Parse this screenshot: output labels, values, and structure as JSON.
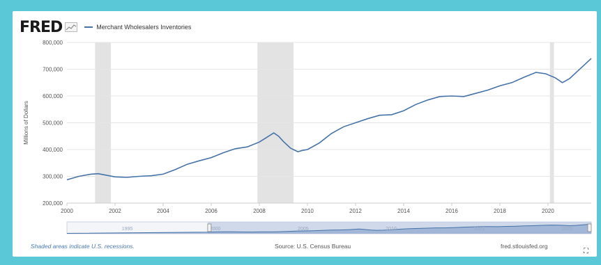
{
  "header": {
    "logo": "FRED",
    "legend_label": "Merchant Wholesalers Inventories"
  },
  "chart_data": {
    "type": "line",
    "ylabel": "Millions of Dollars",
    "xlim": [
      2000,
      2021.8
    ],
    "ylim": [
      200000,
      800000
    ],
    "y_ticks": [
      "200,000",
      "300,000",
      "400,000",
      "500,000",
      "600,000",
      "700,000",
      "800,000"
    ],
    "y_tick_values": [
      200000,
      300000,
      400000,
      500000,
      600000,
      700000,
      800000
    ],
    "x_ticks": [
      "2000",
      "2002",
      "2004",
      "2006",
      "2008",
      "2010",
      "2012",
      "2014",
      "2016",
      "2018",
      "2020"
    ],
    "x_tick_values": [
      2000,
      2002,
      2004,
      2006,
      2008,
      2010,
      2012,
      2014,
      2016,
      2018,
      2020
    ],
    "grid": true,
    "line_color": "#4572a7",
    "recession_color": "#e3e3e3",
    "recessions": [
      [
        2001.17,
        2001.83
      ],
      [
        2007.92,
        2009.42
      ],
      [
        2020.08,
        2020.25
      ]
    ],
    "series": [
      {
        "name": "Merchant Wholesalers Inventories",
        "x": [
          2000,
          2000.5,
          2001,
          2001.3,
          2001.7,
          2002,
          2002.5,
          2003,
          2003.5,
          2004,
          2004.5,
          2005,
          2005.5,
          2006,
          2006.5,
          2007,
          2007.5,
          2008,
          2008.3,
          2008.6,
          2008.8,
          2009,
          2009.3,
          2009.6,
          2009.8,
          2010,
          2010.5,
          2011,
          2011.5,
          2012,
          2012.5,
          2013,
          2013.5,
          2014,
          2014.5,
          2015,
          2015.5,
          2016,
          2016.5,
          2017,
          2017.5,
          2018,
          2018.5,
          2019,
          2019.5,
          2019.9,
          2020.3,
          2020.6,
          2020.9,
          2021.2,
          2021.5,
          2021.8
        ],
        "y": [
          287000,
          300000,
          308000,
          310000,
          303000,
          298000,
          296000,
          300000,
          302000,
          308000,
          325000,
          345000,
          358000,
          370000,
          388000,
          403000,
          410000,
          428000,
          445000,
          462000,
          450000,
          430000,
          405000,
          392000,
          397000,
          400000,
          425000,
          460000,
          485000,
          500000,
          515000,
          528000,
          530000,
          545000,
          568000,
          585000,
          598000,
          600000,
          598000,
          610000,
          622000,
          638000,
          650000,
          670000,
          688000,
          683000,
          668000,
          650000,
          665000,
          690000,
          715000,
          740000
        ]
      }
    ],
    "navigator": {
      "x_labels": [
        "1995",
        "2000",
        "2005",
        "2010",
        "2015",
        "2020"
      ],
      "x_label_values": [
        1995,
        2000,
        2005,
        2010,
        2015,
        2020
      ],
      "range": [
        1992,
        2021.8
      ],
      "selected": [
        2000,
        2021.8
      ]
    }
  },
  "footer": {
    "recession_note": "Shaded areas indicate U.S. recessions.",
    "source": "Source: U.S. Census Bureau",
    "site": "fred.stlouisfed.org",
    "fullscreen_icon": "fullscreen-icon"
  }
}
